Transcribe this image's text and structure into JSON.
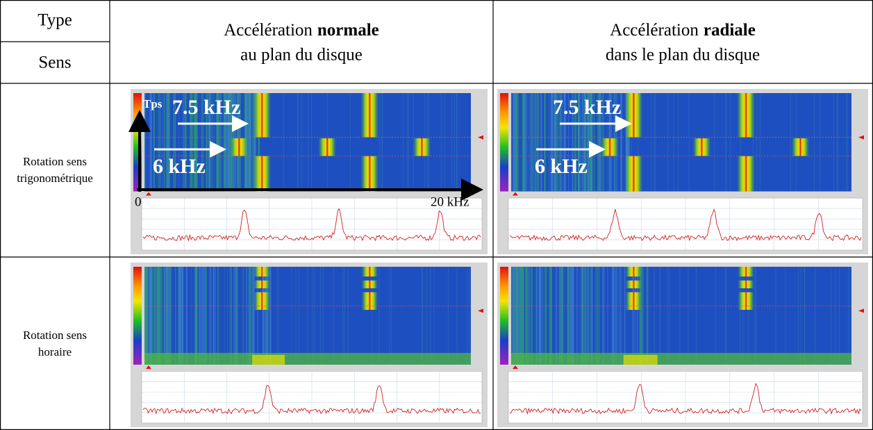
{
  "header": {
    "type": "Type",
    "sens": "Sens",
    "columns": [
      {
        "prefix": "Accélération",
        "bold": "normale",
        "line2": "au plan du disque"
      },
      {
        "prefix": "Accélération",
        "bold": "radiale",
        "line2": "dans le plan du disque"
      }
    ]
  },
  "rows": [
    {
      "label": [
        "Rotation sens",
        "trigonométrique"
      ],
      "annotations": [
        {
          "tps": "Tps",
          "high": "7.5 kHz",
          "low": "6 kHz",
          "origin": "0",
          "end": "20 kHz"
        },
        {
          "high": "7.5 kHz",
          "low": "6 kHz"
        }
      ]
    },
    {
      "label": [
        "Rotation sens",
        "horaire"
      ]
    }
  ]
}
